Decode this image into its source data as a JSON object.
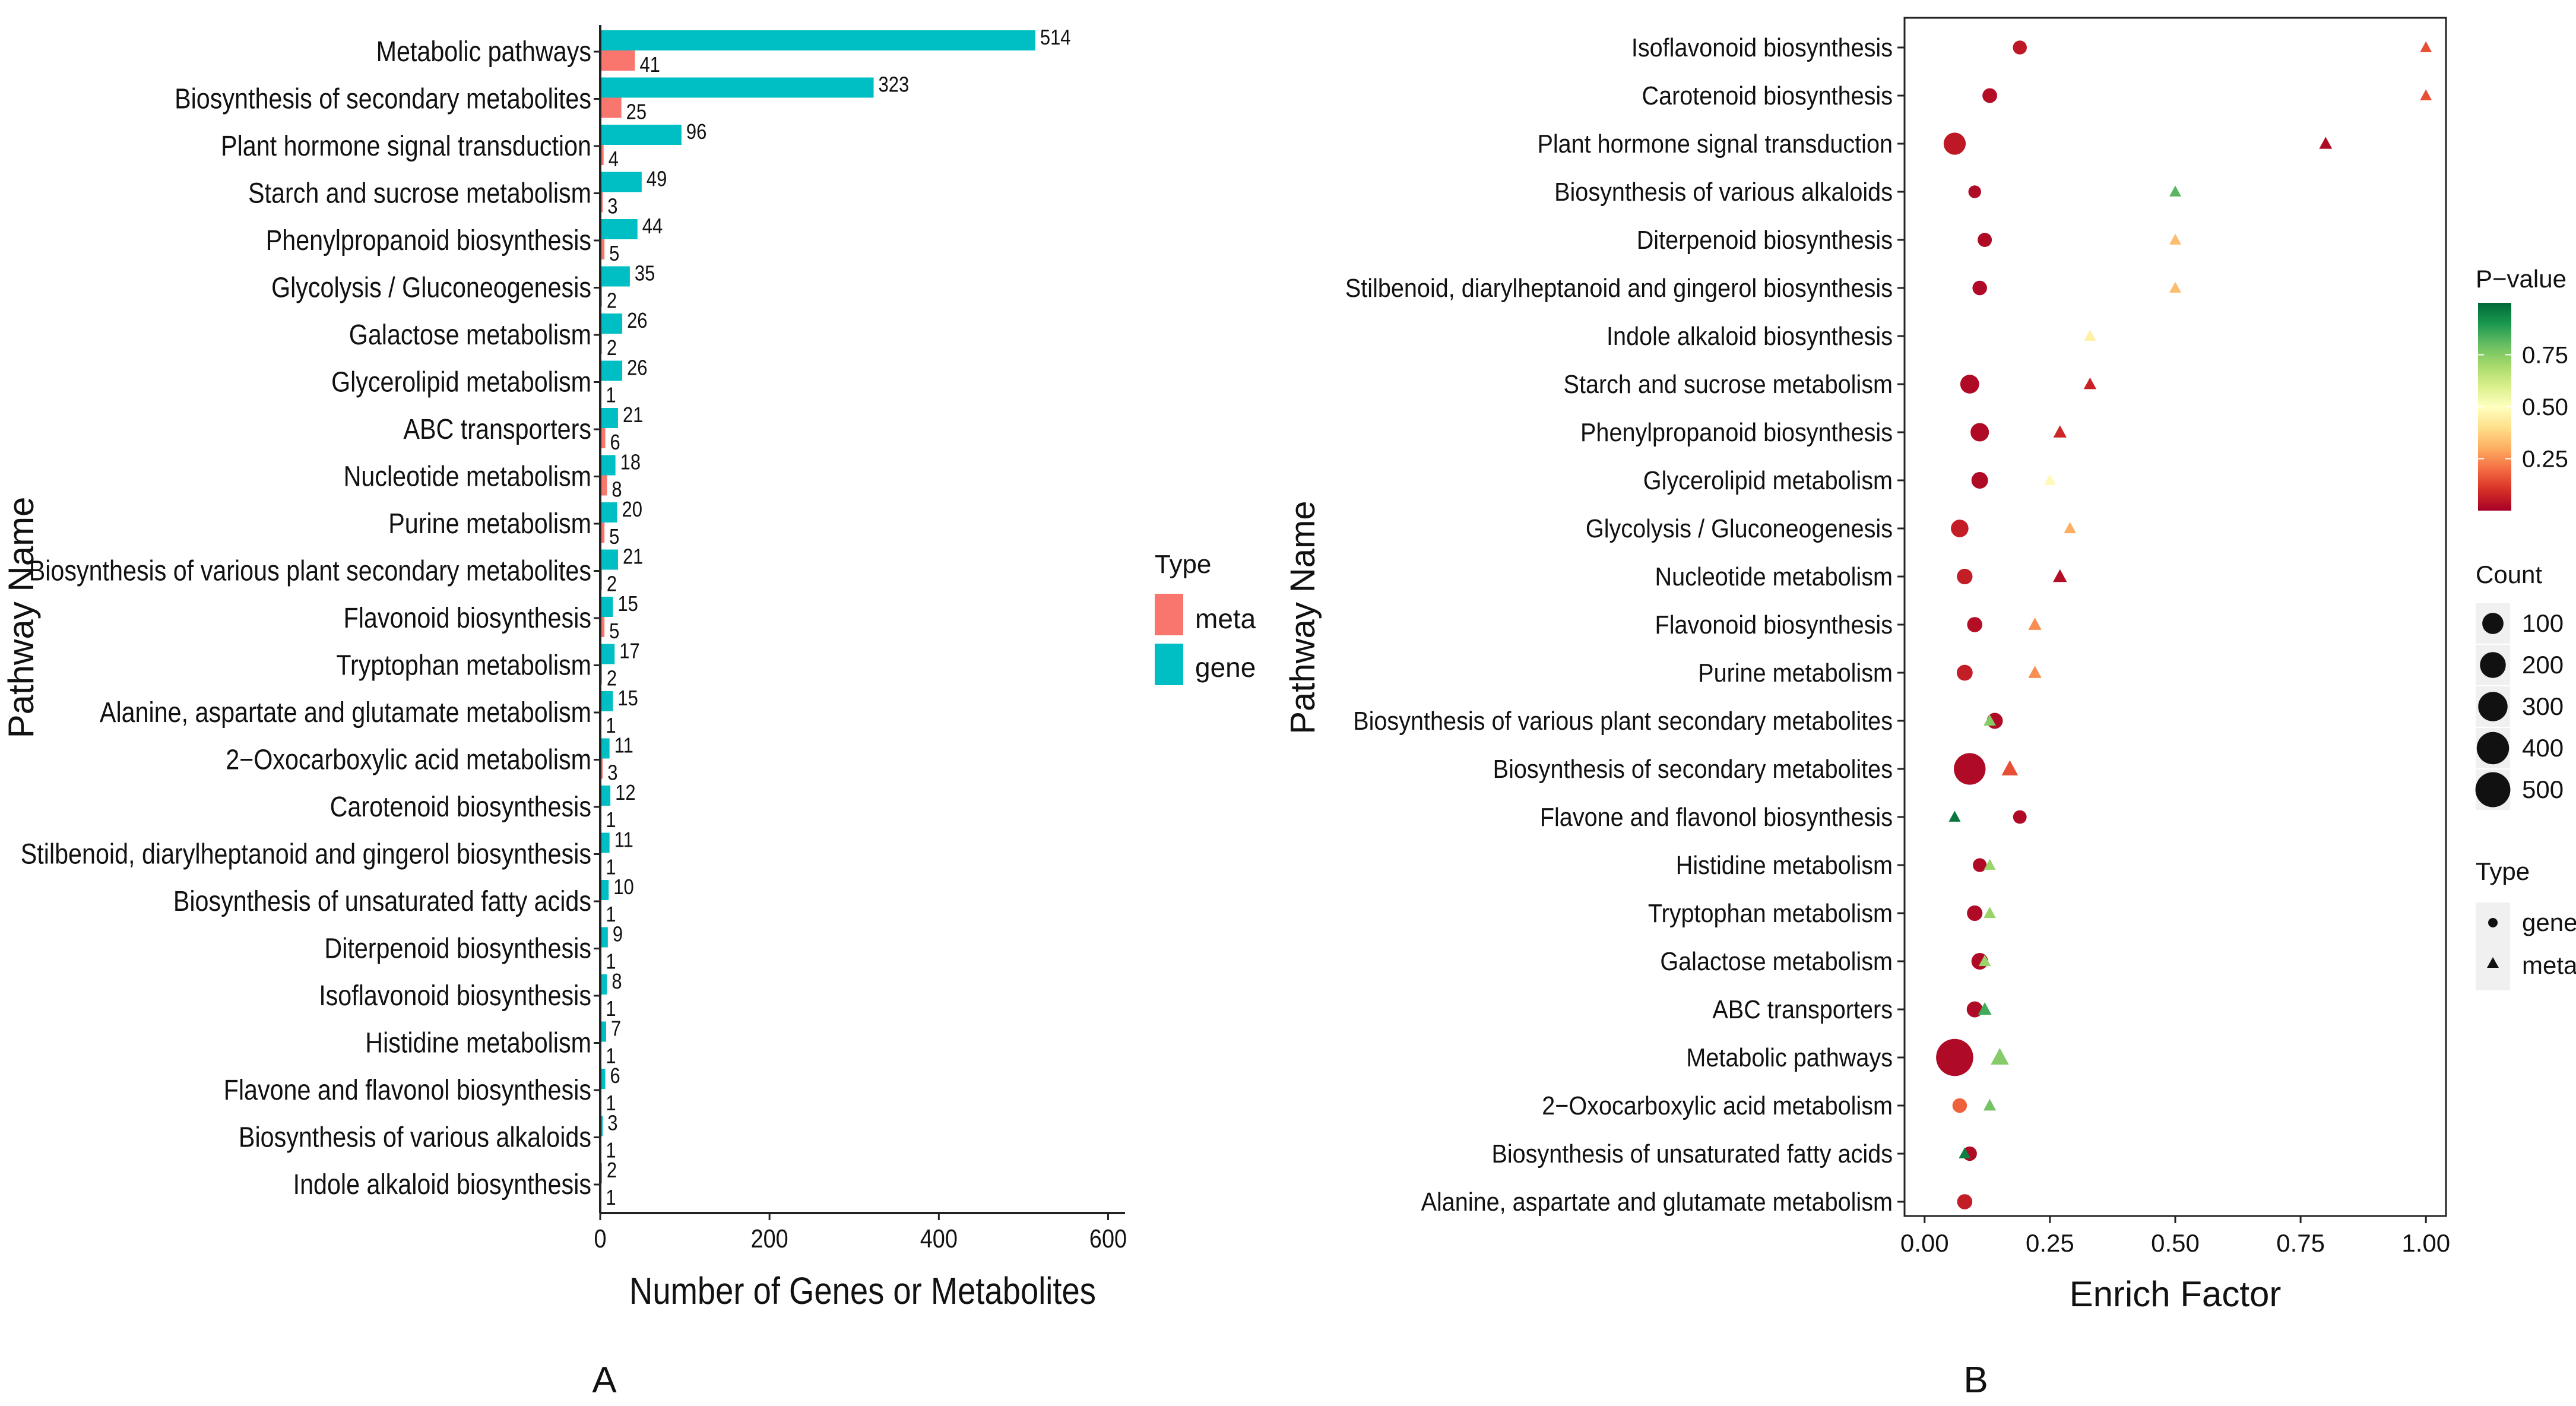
{
  "colors": {
    "meta": "#F8766D",
    "gene": "#00BFC4",
    "pvalue_scale": [
      "#A50026",
      "#D73027",
      "#F46D43",
      "#FDAE61",
      "#FEE08B",
      "#FFFFBF",
      "#D9EF8B",
      "#A6D96A",
      "#66BD63",
      "#1A9850",
      "#006837"
    ]
  },
  "chart_data": [
    {
      "type": "bar",
      "orientation": "horizontal",
      "panel_label": "A",
      "title": "",
      "xlabel": "Number of Genes or Metabolites",
      "ylabel": "Pathway Name",
      "xlim": [
        0,
        620
      ],
      "xticks": [
        0,
        200,
        400,
        600
      ],
      "legend": {
        "title": "Type",
        "position": "right",
        "entries": [
          "meta",
          "gene"
        ]
      },
      "categories": [
        "Metabolic pathways",
        "Biosynthesis of secondary metabolites",
        "Plant hormone signal transduction",
        "Starch and sucrose metabolism",
        "Phenylpropanoid biosynthesis",
        "Glycolysis / Gluconeogenesis",
        "Galactose metabolism",
        "Glycerolipid metabolism",
        "ABC transporters",
        "Nucleotide metabolism",
        "Purine metabolism",
        "Biosynthesis of various plant secondary metabolites",
        "Flavonoid biosynthesis",
        "Tryptophan metabolism",
        "Alanine, aspartate and glutamate metabolism",
        "2−Oxocarboxylic acid metabolism",
        "Carotenoid biosynthesis",
        "Stilbenoid, diarylheptanoid and gingerol biosynthesis",
        "Biosynthesis of unsaturated fatty acids",
        "Diterpenoid biosynthesis",
        "Isoflavonoid biosynthesis",
        "Histidine metabolism",
        "Flavone and flavonol biosynthesis",
        "Biosynthesis of various alkaloids",
        "Indole alkaloid biosynthesis"
      ],
      "series": [
        {
          "name": "gene",
          "values": [
            514,
            323,
            96,
            49,
            44,
            35,
            26,
            26,
            21,
            18,
            20,
            21,
            15,
            17,
            15,
            11,
            12,
            11,
            10,
            9,
            8,
            7,
            6,
            3,
            2
          ]
        },
        {
          "name": "meta",
          "values": [
            41,
            25,
            4,
            3,
            5,
            2,
            2,
            1,
            6,
            8,
            5,
            2,
            5,
            2,
            1,
            3,
            1,
            1,
            1,
            1,
            1,
            1,
            1,
            1,
            1
          ]
        }
      ]
    },
    {
      "type": "scatter",
      "panel_label": "B",
      "title": "",
      "xlabel": "Enrich Factor",
      "ylabel": "Pathway Name",
      "xlim": [
        -0.04,
        1.04
      ],
      "xticks": [
        "0.00",
        "0.25",
        "0.50",
        "0.75",
        "1.00"
      ],
      "xtick_values": [
        0,
        0.25,
        0.5,
        0.75,
        1.0
      ],
      "legend": {
        "position": "right",
        "pvalue_title": "P−value",
        "pvalue_ticks": [
          "0.75",
          "0.50",
          "0.25"
        ],
        "pvalue_tick_values": [
          0.75,
          0.5,
          0.25
        ],
        "count_title": "Count",
        "count_entries": [
          "100",
          "200",
          "300",
          "400",
          "500"
        ],
        "count_values": [
          100,
          200,
          300,
          400,
          500
        ],
        "type_title": "Type",
        "type_entries": [
          "gene",
          "meta"
        ]
      },
      "categories": [
        "Isoflavonoid biosynthesis",
        "Carotenoid biosynthesis",
        "Plant hormone signal transduction",
        "Biosynthesis of various alkaloids",
        "Diterpenoid biosynthesis",
        "Stilbenoid, diarylheptanoid and gingerol biosynthesis",
        "Indole alkaloid biosynthesis",
        "Starch and sucrose metabolism",
        "Phenylpropanoid biosynthesis",
        "Glycerolipid metabolism",
        "Glycolysis / Gluconeogenesis",
        "Nucleotide metabolism",
        "Flavonoid biosynthesis",
        "Purine metabolism",
        "Biosynthesis of various plant secondary metabolites",
        "Biosynthesis of secondary metabolites",
        "Flavone and flavonol biosynthesis",
        "Histidine metabolism",
        "Tryptophan metabolism",
        "Galactose metabolism",
        "ABC transporters",
        "Metabolic pathways",
        "2−Oxocarboxylic acid metabolism",
        "Biosynthesis of unsaturated fatty acids",
        "Alanine, aspartate and glutamate metabolism"
      ],
      "series": [
        {
          "name": "gene",
          "shape": "circle",
          "enrich_factor": [
            0.19,
            0.13,
            0.06,
            0.1,
            0.12,
            0.11,
            null,
            0.09,
            0.11,
            0.11,
            0.07,
            0.08,
            0.1,
            0.08,
            0.14,
            0.09,
            0.19,
            0.11,
            0.1,
            0.11,
            0.1,
            0.06,
            0.07,
            0.09,
            0.08
          ],
          "count": [
            8,
            12,
            96,
            3,
            9,
            11,
            null,
            49,
            44,
            26,
            35,
            18,
            15,
            20,
            21,
            323,
            6,
            7,
            17,
            26,
            21,
            514,
            11,
            10,
            15
          ],
          "pvalue": [
            0.05,
            0.03,
            0.05,
            0.02,
            0.02,
            0.02,
            null,
            0.02,
            0.02,
            0.02,
            0.06,
            0.06,
            0.03,
            0.06,
            0.02,
            0.02,
            0.02,
            0.02,
            0.02,
            0.02,
            0.02,
            0.02,
            0.18,
            0.02,
            0.06
          ]
        },
        {
          "name": "meta",
          "shape": "triangle",
          "enrich_factor": [
            1.0,
            1.0,
            0.8,
            0.5,
            0.5,
            0.5,
            0.33,
            0.33,
            0.27,
            0.25,
            0.29,
            0.27,
            0.22,
            0.22,
            0.13,
            0.17,
            0.06,
            0.13,
            0.13,
            0.12,
            0.12,
            0.15,
            0.13,
            0.08,
            null
          ],
          "count": [
            1,
            1,
            4,
            1,
            1,
            1,
            1,
            3,
            5,
            1,
            2,
            8,
            5,
            5,
            2,
            25,
            1,
            1,
            2,
            2,
            6,
            41,
            3,
            1,
            null
          ],
          "pvalue": [
            0.15,
            0.15,
            0.02,
            0.82,
            0.33,
            0.33,
            0.45,
            0.07,
            0.08,
            0.48,
            0.3,
            0.03,
            0.25,
            0.25,
            0.75,
            0.15,
            0.97,
            0.72,
            0.72,
            0.72,
            0.85,
            0.75,
            0.78,
            0.95,
            null
          ]
        }
      ]
    }
  ]
}
